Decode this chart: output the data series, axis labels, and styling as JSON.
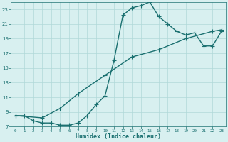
{
  "xlabel": "Humidex (Indice chaleur)",
  "bg_color": "#d8f0f0",
  "line_color": "#1a7070",
  "grid_color": "#b0d8d8",
  "xlim": [
    -0.5,
    23.5
  ],
  "ylim": [
    7,
    24
  ],
  "xticks": [
    0,
    1,
    2,
    3,
    4,
    5,
    6,
    7,
    8,
    9,
    10,
    11,
    12,
    13,
    14,
    15,
    16,
    17,
    18,
    19,
    20,
    21,
    22,
    23
  ],
  "yticks": [
    7,
    9,
    11,
    13,
    15,
    17,
    19,
    21,
    23
  ],
  "line1_x": [
    0,
    1,
    2,
    3,
    4,
    5,
    6,
    7,
    8,
    9,
    10,
    11,
    12,
    13,
    14,
    15,
    16,
    17,
    18,
    19,
    20,
    21,
    22,
    23
  ],
  "line1_y": [
    8.5,
    8.5,
    7.8,
    7.5,
    7.5,
    7.2,
    7.2,
    7.5,
    8.5,
    10.0,
    11.2,
    16.0,
    22.2,
    23.2,
    23.5,
    24.0,
    22.0,
    21.0,
    20.0,
    19.5,
    19.8,
    18.0,
    18.0,
    20.0
  ],
  "line2_x": [
    0,
    3,
    5,
    7,
    10,
    13,
    16,
    19,
    22,
    23
  ],
  "line2_y": [
    8.5,
    8.2,
    9.5,
    11.5,
    14.0,
    16.5,
    17.5,
    19.0,
    20.0,
    20.2
  ],
  "markersize": 2.5,
  "linewidth": 1.0
}
